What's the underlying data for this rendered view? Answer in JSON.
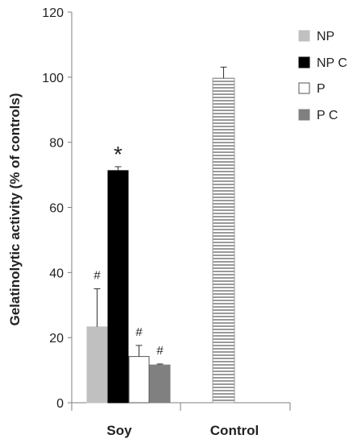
{
  "chart_data": {
    "type": "bar",
    "title": "",
    "xlabel": "",
    "ylabel": "Gelatinolytic activity (% of controls)",
    "ylim": [
      0,
      120
    ],
    "yticks": [
      0,
      20,
      40,
      60,
      80,
      100,
      120
    ],
    "categories": [
      "Soy",
      "Control"
    ],
    "legend_position": "top-right",
    "grid": false,
    "series": [
      {
        "name": "NP",
        "color": "#c0c0c0",
        "values": [
          23.3,
          null
        ],
        "errors": [
          11.7,
          null
        ],
        "annotations": [
          "#",
          null
        ]
      },
      {
        "name": "NP C",
        "color": "#000000",
        "values": [
          71.3,
          null
        ],
        "errors": [
          1.2,
          null
        ],
        "annotations": [
          "*",
          null
        ]
      },
      {
        "name": "P",
        "color": "#ffffff",
        "values": [
          14.2,
          null
        ],
        "errors": [
          3.4,
          null
        ],
        "annotations": [
          "#",
          null
        ]
      },
      {
        "name": "P C",
        "color": "#808080",
        "values": [
          11.6,
          null
        ],
        "errors": [
          0.3,
          null
        ],
        "annotations": [
          "#",
          null
        ]
      }
    ],
    "control_bar": {
      "category": "Control",
      "value": 99.7,
      "error": 3.4,
      "pattern": "horizontal-stripes"
    }
  }
}
